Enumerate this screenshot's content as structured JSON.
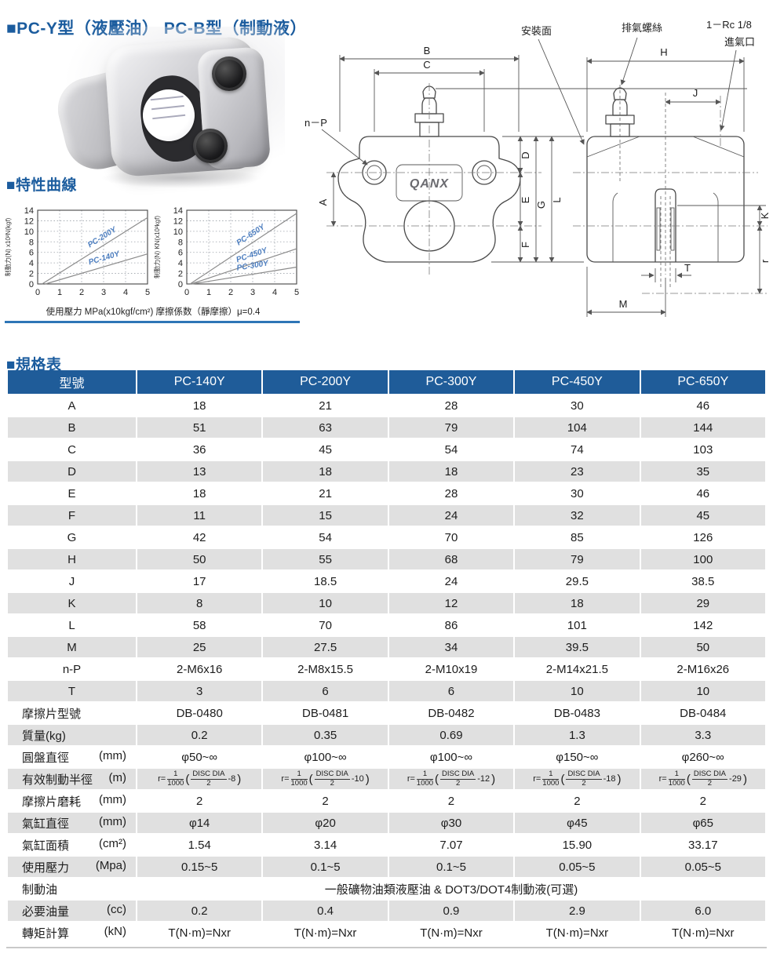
{
  "page": {
    "title": "■PC-Y型（液壓油） PC-B型（制動液）",
    "curve_section": "■特性曲線",
    "spec_section": "■規格表"
  },
  "colors": {
    "accent_blue": "#1b5c9e",
    "table_header_blue": "#1f5c99",
    "row_alt_grey": "#e0e0e0",
    "chart_label_blue": "#4d7ebf",
    "caption_rule_blue": "#2e75b6"
  },
  "chart_caption": "使用壓力 MPa(x10kgf/cm²) 摩擦係数（靜摩擦）μ=0.4",
  "chart_data": [
    {
      "type": "line",
      "ylabel": "制動力(N) x10²N(kgf)",
      "xlim": [
        0,
        5
      ],
      "ylim": [
        0,
        14
      ],
      "xticks": [
        0,
        1,
        2,
        3,
        4,
        5
      ],
      "yticks": [
        0,
        2,
        4,
        6,
        8,
        10,
        12,
        14
      ],
      "grid": true,
      "legend_position": "on-line",
      "series": [
        {
          "name": "PC-200Y",
          "x": [
            0.2,
            5
          ],
          "y": [
            0,
            12.6
          ]
        },
        {
          "name": "PC-140Y",
          "x": [
            0.35,
            5
          ],
          "y": [
            0,
            5.7
          ]
        }
      ]
    },
    {
      "type": "line",
      "ylabel": "制動力(N) KN(x10²kgf)",
      "xlim": [
        0,
        5
      ],
      "ylim": [
        0,
        14
      ],
      "xticks": [
        0,
        1,
        2,
        3,
        4,
        5
      ],
      "yticks": [
        0,
        2,
        4,
        6,
        8,
        10,
        12,
        14
      ],
      "grid": true,
      "legend_position": "on-line",
      "series": [
        {
          "name": "PC-650Y",
          "x": [
            0.15,
            5
          ],
          "y": [
            0,
            13.4
          ]
        },
        {
          "name": "PC-450Y",
          "x": [
            0.2,
            5
          ],
          "y": [
            0,
            6.7
          ]
        },
        {
          "name": "PC-300Y",
          "x": [
            0.25,
            5
          ],
          "y": [
            0,
            3.2
          ]
        }
      ]
    }
  ],
  "drawing": {
    "labels": {
      "mount_face": "安裝面",
      "bleed_screw": "排氣螺絲",
      "inlet_thread": "1－Rc 1/8",
      "inlet_port": "進氣口",
      "np": "n－P",
      "logo": "QANX"
    },
    "dims": {
      "a": "A",
      "b": "B",
      "c": "C",
      "d": "D",
      "e": "E",
      "f": "F",
      "g": "G",
      "h": "H",
      "j": "J",
      "k": "K",
      "l": "L",
      "m": "M",
      "r": "r",
      "t": "T"
    }
  },
  "spec_table": {
    "header": [
      "型號",
      "PC-140Y",
      "PC-200Y",
      "PC-300Y",
      "PC-450Y",
      "PC-650Y"
    ],
    "formula": {
      "prefix": "r=",
      "num": "1",
      "den": "1000",
      "dnum": "DISC DIA",
      "dden": "2"
    },
    "rows": [
      {
        "label": "A",
        "values": [
          "18",
          "21",
          "28",
          "30",
          "46"
        ]
      },
      {
        "label": "B",
        "values": [
          "51",
          "63",
          "79",
          "104",
          "144"
        ]
      },
      {
        "label": "C",
        "values": [
          "36",
          "45",
          "54",
          "74",
          "103"
        ]
      },
      {
        "label": "D",
        "values": [
          "13",
          "18",
          "18",
          "23",
          "35"
        ]
      },
      {
        "label": "E",
        "values": [
          "18",
          "21",
          "28",
          "30",
          "46"
        ]
      },
      {
        "label": "F",
        "values": [
          "11",
          "15",
          "24",
          "32",
          "45"
        ]
      },
      {
        "label": "G",
        "values": [
          "42",
          "54",
          "70",
          "85",
          "126"
        ]
      },
      {
        "label": "H",
        "values": [
          "50",
          "55",
          "68",
          "79",
          "100"
        ]
      },
      {
        "label": "J",
        "values": [
          "17",
          "18.5",
          "24",
          "29.5",
          "38.5"
        ]
      },
      {
        "label": "K",
        "values": [
          "8",
          "10",
          "12",
          "18",
          "29"
        ]
      },
      {
        "label": "L",
        "values": [
          "58",
          "70",
          "86",
          "101",
          "142"
        ]
      },
      {
        "label": "M",
        "values": [
          "25",
          "27.5",
          "34",
          "39.5",
          "50"
        ]
      },
      {
        "label": "n-P",
        "values": [
          "2-M6x16",
          "2-M8x15.5",
          "2-M10x19",
          "2-M14x21.5",
          "2-M16x26"
        ]
      },
      {
        "label": "T",
        "values": [
          "3",
          "6",
          "6",
          "10",
          "10"
        ]
      },
      {
        "label": "摩擦片型號",
        "left": true,
        "values": [
          "DB-0480",
          "DB-0481",
          "DB-0482",
          "DB-0483",
          "DB-0484"
        ]
      },
      {
        "label": "質量(kg)",
        "left": true,
        "values": [
          "0.2",
          "0.35",
          "0.69",
          "1.3",
          "3.3"
        ]
      },
      {
        "label": "圓盤直徑",
        "unit": "(mm)",
        "left": true,
        "values": [
          "φ50~∞",
          "φ100~∞",
          "φ100~∞",
          "φ150~∞",
          "φ260~∞"
        ]
      },
      {
        "label": "有效制動半徑",
        "unit": "(m)",
        "left": true,
        "type": "formula",
        "values": [
          "8",
          "10",
          "12",
          "18",
          "29"
        ]
      },
      {
        "label": "摩擦片磨耗",
        "unit": "(mm)",
        "left": true,
        "values": [
          "2",
          "2",
          "2",
          "2",
          "2"
        ]
      },
      {
        "label": "氣缸直徑",
        "unit": "(mm)",
        "left": true,
        "values": [
          "φ14",
          "φ20",
          "φ30",
          "φ45",
          "φ65"
        ]
      },
      {
        "label": "氣缸面積",
        "unit": "(cm²)",
        "left": true,
        "values": [
          "1.54",
          "3.14",
          "7.07",
          "15.90",
          "33.17"
        ]
      },
      {
        "label": "使用壓力",
        "unit": "(Mpa)",
        "left": true,
        "values": [
          "0.15~5",
          "0.1~5",
          "0.1~5",
          "0.05~5",
          "0.05~5"
        ]
      },
      {
        "label": "制動油",
        "left": true,
        "type": "span",
        "values": [
          "一般礦物油類液壓油 & DOT3/DOT4制動液(可選)"
        ]
      },
      {
        "label": "必要油量",
        "unit": "(cc)",
        "left": true,
        "values": [
          "0.2",
          "0.4",
          "0.9",
          "2.9",
          "6.0"
        ]
      },
      {
        "label": "轉矩計算",
        "unit": "(kN)",
        "left": true,
        "values": [
          "T(N·m)=Nxr",
          "T(N·m)=Nxr",
          "T(N·m)=Nxr",
          "T(N·m)=Nxr",
          "T(N·m)=Nxr"
        ]
      }
    ]
  }
}
